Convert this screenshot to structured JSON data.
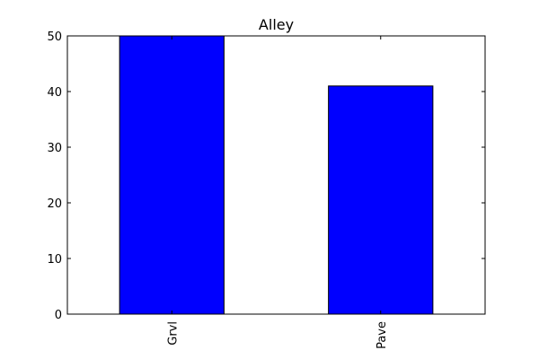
{
  "chart_data": {
    "type": "bar",
    "title": "Alley",
    "xlabel": "",
    "ylabel": "",
    "categories": [
      "Grvl",
      "Pave"
    ],
    "values": [
      50,
      41
    ],
    "ylim": [
      0,
      50
    ],
    "yticks": [
      0,
      10,
      20,
      30,
      40,
      50
    ],
    "ytick_labels": [
      "0",
      "10",
      "20",
      "30",
      "40",
      "50"
    ],
    "xtick_rotation": "vertical",
    "grid": false,
    "legend": "none",
    "bar_color": "#0000ff",
    "edge_color": "#000000"
  }
}
